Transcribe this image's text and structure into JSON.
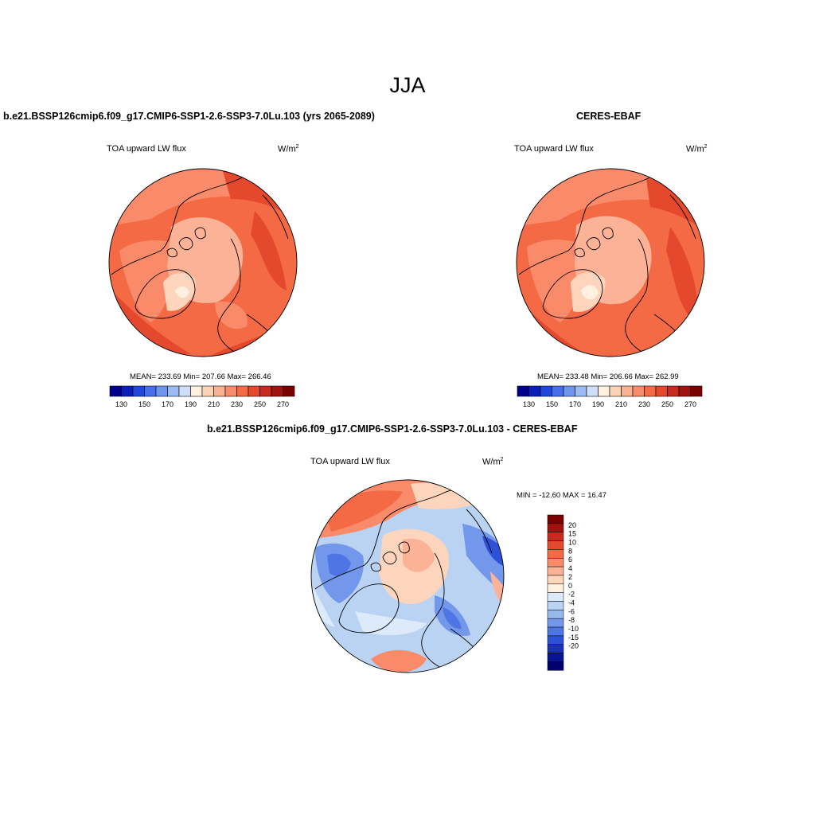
{
  "page": {
    "season": "JJA",
    "colors": {
      "warm": [
        "#fff0e0",
        "#fcd5bc",
        "#fbb297",
        "#f98b6b",
        "#f36a45",
        "#e4482d",
        "#c82a1e",
        "#a0120f",
        "#7a0000"
      ],
      "cool": [
        "#dceaf9",
        "#bad3f2",
        "#96b9ee",
        "#7397eb",
        "#4f75e5",
        "#2d51d6",
        "#1a30b6",
        "#071592",
        "#00006e"
      ]
    }
  },
  "panel_model": {
    "title": "b.e21.BSSP126cmip6.f09_g17.CMIP6-SSP1-2.6-SSP3-7.0Lu.103 (yrs 2065-2089)",
    "variable": "TOA upward LW flux",
    "units_base": "W/m",
    "units_exp": "2",
    "stats": "MEAN= 233.69  Min= 207.66  Max= 266.46"
  },
  "panel_obs": {
    "title": "CERES-EBAF",
    "variable": "TOA upward LW flux",
    "units_base": "W/m",
    "units_exp": "2",
    "stats": "MEAN= 233.48  Min= 206.66  Max= 262.99"
  },
  "panel_diff": {
    "title": "b.e21.BSSP126cmip6.f09_g17.CMIP6-SSP1-2.6-SSP3-7.0Lu.103 - CERES-EBAF",
    "variable": "TOA upward LW flux",
    "units_base": "W/m",
    "units_exp": "2",
    "stats": "MIN = -12.60 MAX =  16.47"
  },
  "colorbar_abs": {
    "colors": [
      "#00008b",
      "#0a1fb8",
      "#1f47e0",
      "#4670ea",
      "#6e95ee",
      "#9cbbf2",
      "#cde0f8",
      "#fff0e0",
      "#fcd2b6",
      "#fab094",
      "#f98b6b",
      "#f36a45",
      "#e4482d",
      "#c82a1e",
      "#a0120f",
      "#7a0000"
    ],
    "tick_labels": [
      "130",
      "150",
      "170",
      "190",
      "210",
      "230",
      "250",
      "270"
    ]
  },
  "colorbar_diff": {
    "colors": [
      "#7a0000",
      "#a0120f",
      "#c82a1e",
      "#e4482d",
      "#f36a45",
      "#f98b6b",
      "#fbb297",
      "#fcd5bc",
      "#fff0e0",
      "#dceaf9",
      "#bad3f2",
      "#96b9ee",
      "#7397eb",
      "#4f75e5",
      "#2d51d6",
      "#1a30b6",
      "#071592",
      "#00006e"
    ],
    "tick_labels": [
      "20",
      "15",
      "10",
      "8",
      "6",
      "4",
      "2",
      "0",
      "-2",
      "-4",
      "-6",
      "-8",
      "-10",
      "-15",
      "-20"
    ]
  }
}
